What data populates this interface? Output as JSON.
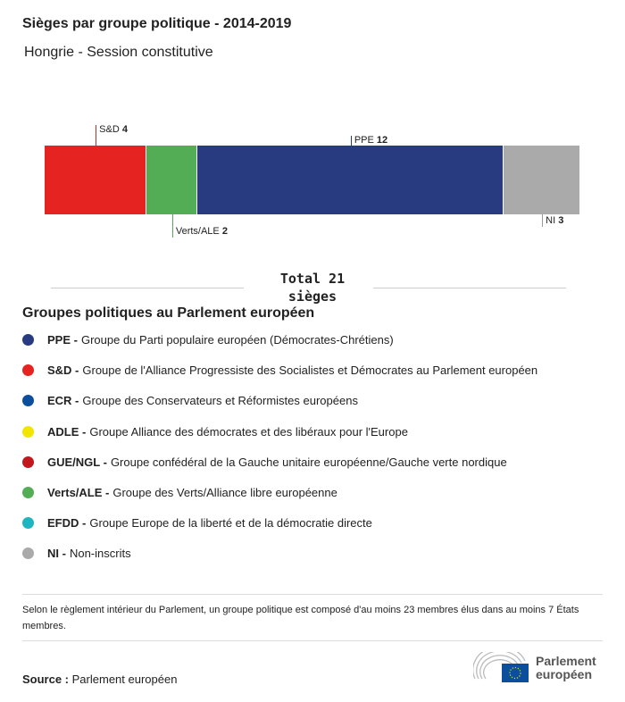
{
  "title": "Sièges par groupe politique - 2014-2019",
  "subtitle": "Hongrie - Session constitutive",
  "chart_data": {
    "type": "bar",
    "orientation": "horizontal-stacked",
    "categories": [
      "S&D",
      "Verts/ALE",
      "PPE",
      "NI"
    ],
    "values": [
      4,
      2,
      12,
      3
    ],
    "colors": [
      "#e52421",
      "#52ad55",
      "#283a80",
      "#aaaaaa"
    ],
    "total_label": "Total 21 sièges"
  },
  "legend": {
    "title": "Groupes politiques au Parlement européen",
    "items": [
      {
        "abbr": "PPE -",
        "text": "Groupe du Parti populaire européen (Démocrates-Chrétiens)",
        "color": "#283a80"
      },
      {
        "abbr": "S&D -",
        "text": "Groupe de l'Alliance Progressiste des Socialistes et Démocrates au Parlement européen",
        "color": "#e52421"
      },
      {
        "abbr": "ECR -",
        "text": "Groupe des Conservateurs et Réformistes européens",
        "color": "#0b4f9c"
      },
      {
        "abbr": "ADLE -",
        "text": "Groupe Alliance des démocrates et des libéraux pour l'Europe",
        "color": "#f2e500"
      },
      {
        "abbr": "GUE/NGL -",
        "text": "Groupe confédéral de la Gauche unitaire européenne/Gauche verte nordique",
        "color": "#c0181d"
      },
      {
        "abbr": "Verts/ALE -",
        "text": "Groupe des Verts/Alliance libre européenne",
        "color": "#52ad55"
      },
      {
        "abbr": "EFDD -",
        "text": "Groupe Europe de la liberté et de la démocratie directe",
        "color": "#1fb5c0"
      },
      {
        "abbr": "NI -",
        "text": "Non-inscrits",
        "color": "#aaaaaa"
      }
    ]
  },
  "note": "Selon le règlement intérieur du Parlement, un groupe politique est composé d'au moins 23 membres élus dans au moins 7 États membres.",
  "source": {
    "label": "Source :",
    "value": "Parlement européen"
  },
  "logo": {
    "line1": "Parlement",
    "line2": "européen"
  }
}
